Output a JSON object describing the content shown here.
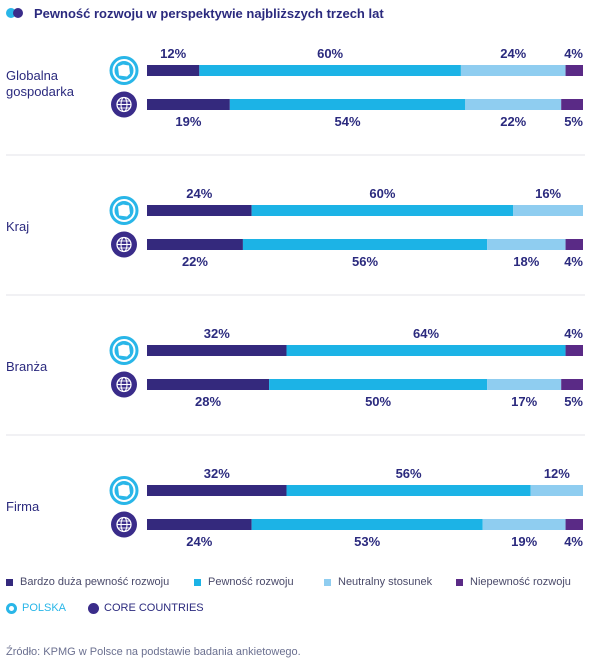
{
  "title": "Pewność rozwoju w perspektywie najbliższych trzech lat",
  "colors": {
    "very_sure": "#34297d",
    "sure": "#1cb3e6",
    "neutral": "#8fcdf0",
    "unsure": "#5a2a86",
    "polska": "#29b6e8",
    "core": "#3a2c8a"
  },
  "legend": {
    "categories": [
      "Bardzo duża pewność rozwoju",
      "Pewność rozwoju",
      "Neutralny stosunek",
      "Niepewność rozwoju"
    ],
    "polska": "POLSKA",
    "core": "CORE COUNTRIES"
  },
  "source": "Źródło: KPMG w Polsce na podstawie badania ankietowego.",
  "chart_data": {
    "type": "bar",
    "stacked": true,
    "orientation": "horizontal",
    "title": "Pewność rozwoju w perspektywie najbliższych trzech lat",
    "categories": [
      "Globalna gospodarka",
      "Kraj",
      "Branża",
      "Firma"
    ],
    "groups": [
      "POLSKA",
      "CORE COUNTRIES"
    ],
    "segments": [
      "Bardzo duża pewność rozwoju",
      "Pewność rozwoju",
      "Neutralny stosunek",
      "Niepewność rozwoju"
    ],
    "rows": [
      {
        "label": "Globalna gospodarka",
        "polska": [
          12,
          60,
          24,
          4
        ],
        "core": [
          19,
          54,
          22,
          5
        ]
      },
      {
        "label": "Kraj",
        "polska": [
          24,
          60,
          16,
          0
        ],
        "core": [
          22,
          56,
          18,
          4
        ]
      },
      {
        "label": "Branża",
        "polska": [
          32,
          64,
          0,
          4
        ],
        "core": [
          28,
          50,
          17,
          5
        ]
      },
      {
        "label": "Firma",
        "polska": [
          32,
          56,
          12,
          0
        ],
        "core": [
          24,
          53,
          19,
          4
        ]
      }
    ],
    "unit": "%"
  }
}
